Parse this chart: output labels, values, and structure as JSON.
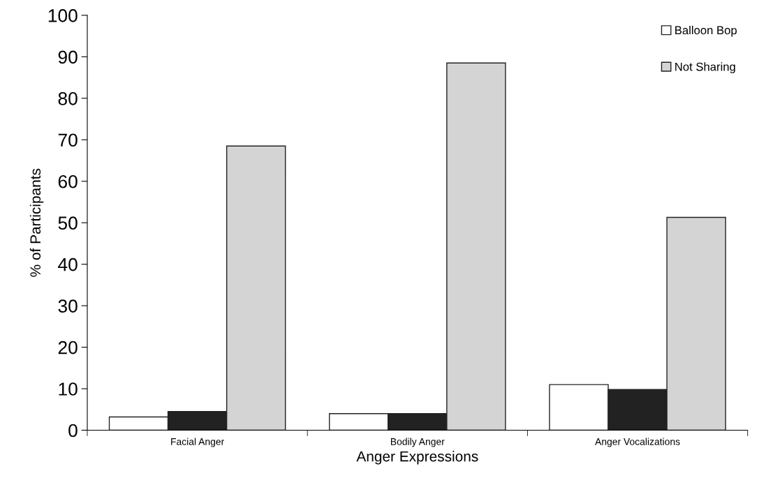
{
  "chart_data": {
    "type": "bar",
    "xlabel": "Anger Expressions",
    "ylabel": "% of Participants",
    "categories": [
      "Facial Anger",
      "Bodily Anger",
      "Anger Vocalizations"
    ],
    "series": [
      {
        "name": "Balloon Bop",
        "color": "#ffffff",
        "values": [
          3.2,
          4.0,
          11.0
        ]
      },
      {
        "color": "#222222",
        "values": [
          4.5,
          4.0,
          9.8
        ]
      },
      {
        "name": "Not Sharing",
        "color": "#d4d4d4",
        "values": [
          68.5,
          88.5,
          51.3
        ]
      }
    ],
    "ylim": [
      0,
      100
    ],
    "yticks": [
      0,
      10,
      20,
      30,
      40,
      50,
      60,
      70,
      80,
      90,
      100
    ],
    "grid": false,
    "legend": "top right"
  }
}
